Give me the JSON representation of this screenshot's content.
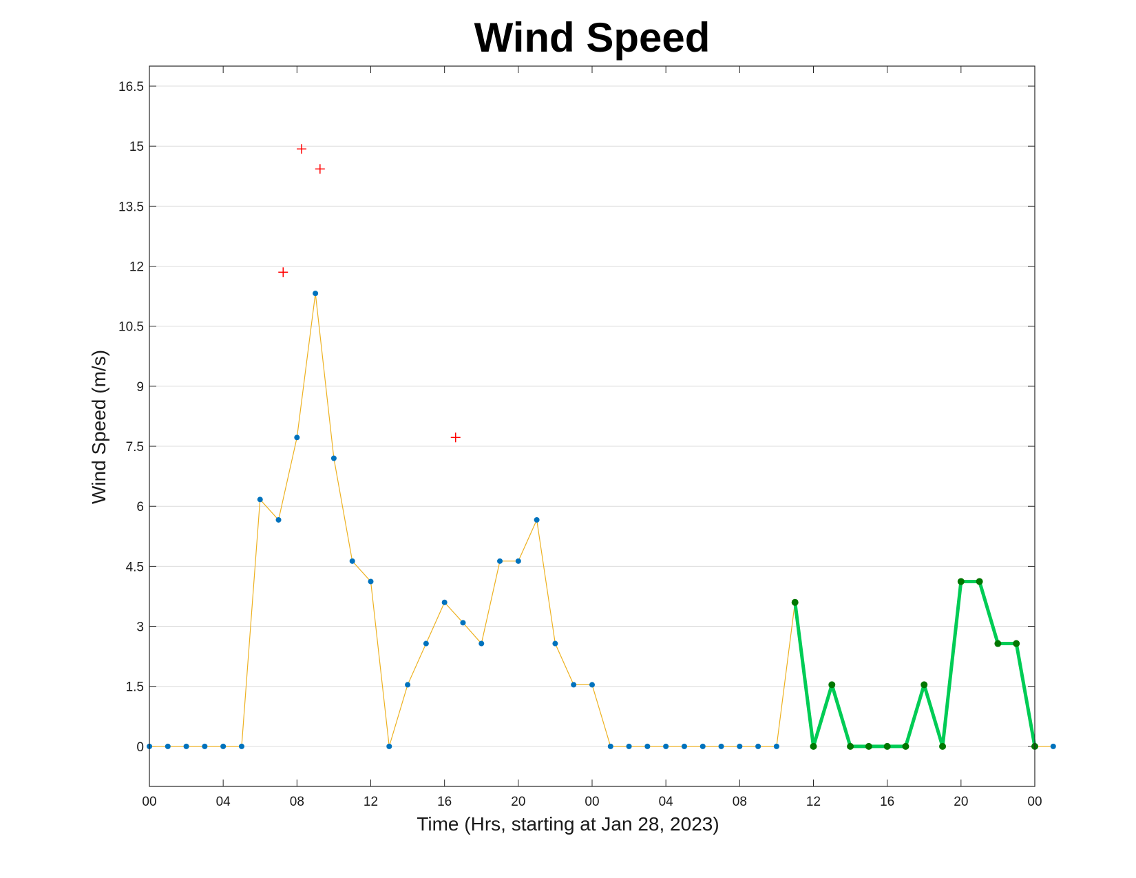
{
  "chart_data": {
    "type": "line",
    "title": "Wind Speed",
    "xlabel": "Time (Hrs, starting at Jan 28, 2023)",
    "ylabel": "Wind Speed (m/s)",
    "xlim": [
      0,
      48
    ],
    "ylim": [
      -1,
      17
    ],
    "grid": "horizontal",
    "xticks": [
      0,
      4,
      8,
      12,
      16,
      20,
      24,
      28,
      32,
      36,
      40,
      44,
      48
    ],
    "xtick_labels": [
      "00",
      "04",
      "08",
      "12",
      "16",
      "20",
      "00",
      "04",
      "08",
      "12",
      "16",
      "20",
      "00"
    ],
    "yticks": [
      0,
      1.5,
      3,
      4.5,
      6,
      7.5,
      9,
      10.5,
      12,
      13.5,
      15,
      16.5
    ],
    "ytick_labels": [
      "0",
      "1.5",
      "3",
      "4.5",
      "6",
      "7.5",
      "9",
      "10.5",
      "12",
      "13.5",
      "15",
      "16.5"
    ],
    "colors": {
      "line": "#edb120",
      "marker": "#0072bd",
      "highlight_line": "#00cc55",
      "highlight_marker": "#007700",
      "outlier": "#ff0000"
    },
    "series": [
      {
        "values": [
          0,
          0,
          0,
          0,
          0,
          0,
          6.17,
          5.66,
          7.72,
          11.32,
          7.2,
          4.63,
          4.12,
          0,
          1.54,
          2.57,
          3.6,
          3.09,
          2.57,
          4.63,
          4.63,
          5.66,
          2.57,
          1.54,
          1.54,
          0,
          0,
          0,
          0,
          0,
          0,
          0,
          0,
          0,
          0,
          3.6,
          0,
          1.54,
          0,
          0,
          0,
          0,
          1.54,
          0,
          4.12,
          4.12,
          2.57,
          2.57,
          0,
          0
        ],
        "x_start": 0,
        "x_step": 1
      },
      {
        "x": [
          35,
          36,
          37,
          38,
          39,
          40,
          41,
          42,
          43,
          44,
          45,
          46,
          47,
          48
        ],
        "values": [
          3.6,
          0,
          1.54,
          0,
          0,
          0,
          0,
          1.54,
          0,
          4.12,
          4.12,
          2.57,
          2.57,
          0
        ]
      },
      {
        "x": [
          7.25,
          8.25,
          9.25,
          16.6
        ],
        "values": [
          11.85,
          14.93,
          14.43,
          7.72
        ]
      }
    ]
  }
}
